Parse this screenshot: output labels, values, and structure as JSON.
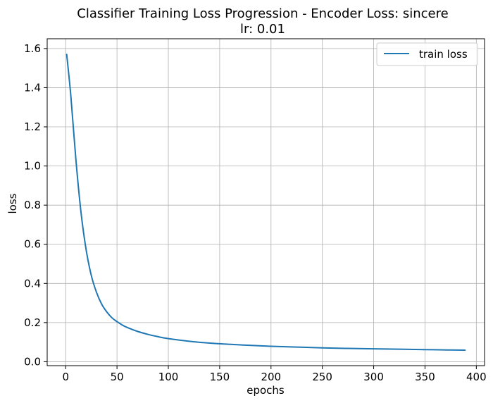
{
  "chart_data": {
    "type": "line",
    "title": "Classifier Training Loss Progression - Encoder Loss: sincere",
    "subtitle": "lr: 0.01",
    "xlabel": "epochs",
    "ylabel": "loss",
    "xlim": [
      -18,
      408
    ],
    "ylim": [
      -0.02,
      1.65
    ],
    "xticks": [
      0,
      50,
      100,
      150,
      200,
      250,
      300,
      350,
      400
    ],
    "yticks": [
      0.0,
      0.2,
      0.4,
      0.6,
      0.8,
      1.0,
      1.2,
      1.4,
      1.6
    ],
    "ytick_labels": [
      "0.0",
      "0.2",
      "0.4",
      "0.6",
      "0.8",
      "1.0",
      "1.2",
      "1.4",
      "1.6"
    ],
    "grid": true,
    "legend_position": "top-right",
    "colors": {
      "train_loss": "#1f77b4",
      "grid": "#b0b0b0"
    },
    "series": [
      {
        "name": "train loss",
        "x": [
          1,
          5,
          10,
          15,
          20,
          25,
          30,
          35,
          40,
          45,
          50,
          55,
          60,
          70,
          80,
          90,
          100,
          125,
          150,
          175,
          200,
          225,
          250,
          275,
          300,
          325,
          350,
          375,
          389
        ],
        "y": [
          1.57,
          1.36,
          1.03,
          0.76,
          0.57,
          0.44,
          0.355,
          0.295,
          0.255,
          0.225,
          0.205,
          0.188,
          0.175,
          0.155,
          0.14,
          0.128,
          0.118,
          0.102,
          0.092,
          0.085,
          0.079,
          0.075,
          0.071,
          0.068,
          0.066,
          0.064,
          0.062,
          0.06,
          0.059
        ]
      }
    ]
  }
}
